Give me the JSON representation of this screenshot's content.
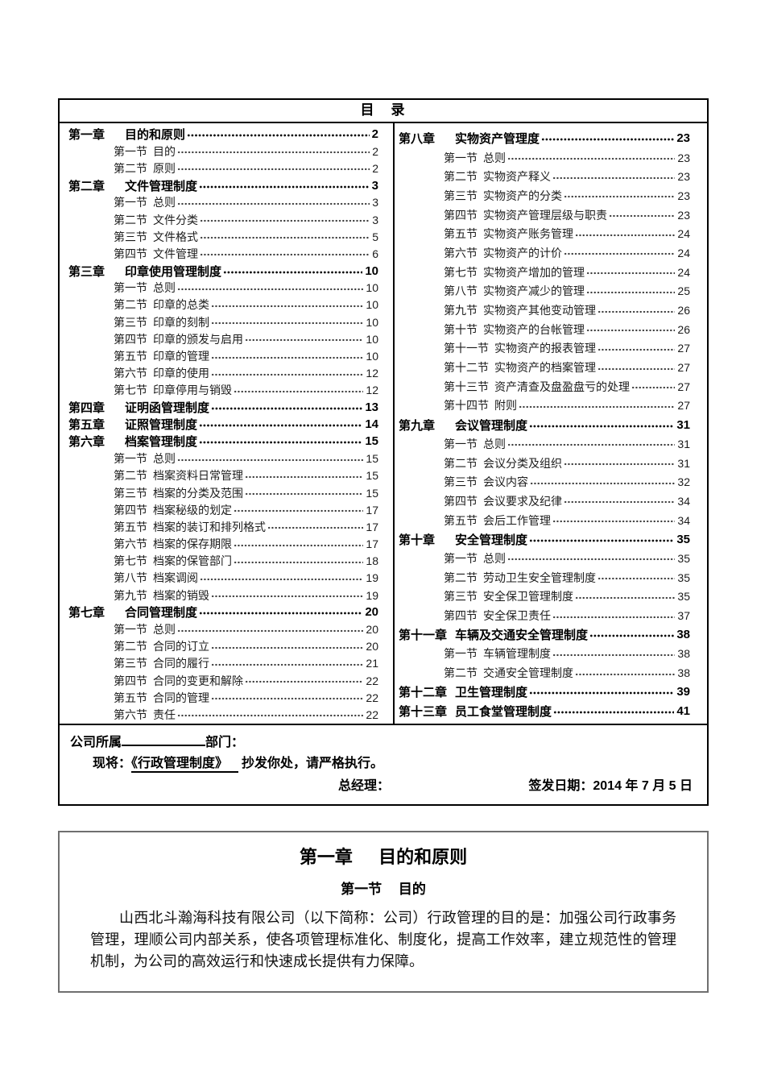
{
  "document": {
    "toc": {
      "title": "目　录",
      "left_column": [
        {
          "type": "chapter",
          "label": "第一章",
          "title": "目的和原则",
          "page": "2"
        },
        {
          "type": "section",
          "label": "第一节",
          "title": "目的",
          "page": "2"
        },
        {
          "type": "section",
          "label": "第二节",
          "title": "原则",
          "page": "2"
        },
        {
          "type": "chapter",
          "label": "第二章",
          "title": "文件管理制度",
          "page": "3"
        },
        {
          "type": "section",
          "label": "第一节",
          "title": "总则",
          "page": "3"
        },
        {
          "type": "section",
          "label": "第二节",
          "title": "文件分类",
          "page": "3"
        },
        {
          "type": "section",
          "label": "第三节",
          "title": "文件格式",
          "page": "5"
        },
        {
          "type": "section",
          "label": "第四节",
          "title": "文件管理",
          "page": "6"
        },
        {
          "type": "chapter",
          "label": "第三章",
          "title": "印章使用管理制度",
          "page": "10"
        },
        {
          "type": "section",
          "label": "第一节",
          "title": "总则",
          "page": "10"
        },
        {
          "type": "section",
          "label": "第二节",
          "title": "印章的总类",
          "page": "10"
        },
        {
          "type": "section",
          "label": "第三节",
          "title": "印章的刻制",
          "page": "10"
        },
        {
          "type": "section",
          "label": "第四节",
          "title": "印章的颁发与启用",
          "page": "10"
        },
        {
          "type": "section",
          "label": "第五节",
          "title": "印章的管理",
          "page": "10"
        },
        {
          "type": "section",
          "label": "第六节",
          "title": "印章的使用",
          "page": "12"
        },
        {
          "type": "section",
          "label": "第七节",
          "title": "印章停用与销毁",
          "page": "12"
        },
        {
          "type": "chapter",
          "label": "第四章",
          "title": "证明函管理制度",
          "page": "13"
        },
        {
          "type": "chapter",
          "label": "第五章",
          "title": "证照管理制度",
          "page": "14"
        },
        {
          "type": "chapter",
          "label": "第六章",
          "title": "档案管理制度",
          "page": "15"
        },
        {
          "type": "section",
          "label": "第一节",
          "title": "总则",
          "page": "15"
        },
        {
          "type": "section",
          "label": "第二节",
          "title": "档案资料日常管理",
          "page": "15"
        },
        {
          "type": "section",
          "label": "第三节",
          "title": "档案的分类及范围",
          "page": "15"
        },
        {
          "type": "section",
          "label": "第四节",
          "title": "档案秘级的划定",
          "page": "17"
        },
        {
          "type": "section",
          "label": "第五节",
          "title": "档案的装订和排列格式",
          "page": "17"
        },
        {
          "type": "section",
          "label": "第六节",
          "title": "档案的保存期限",
          "page": "17"
        },
        {
          "type": "section",
          "label": "第七节",
          "title": "档案的保管部门",
          "page": "18"
        },
        {
          "type": "section",
          "label": "第八节",
          "title": "档案调阅",
          "page": "19"
        },
        {
          "type": "section",
          "label": "第九节",
          "title": "档案的销毁",
          "page": "19"
        },
        {
          "type": "chapter",
          "label": "第七章",
          "title": "合同管理制度",
          "page": "20"
        },
        {
          "type": "section",
          "label": "第一节",
          "title": "总则",
          "page": "20"
        },
        {
          "type": "section",
          "label": "第二节",
          "title": "合同的订立",
          "page": "20"
        },
        {
          "type": "section",
          "label": "第三节",
          "title": "合同的履行",
          "page": "21"
        },
        {
          "type": "section",
          "label": "第四节",
          "title": "合同的变更和解除",
          "page": "22"
        },
        {
          "type": "section",
          "label": "第五节",
          "title": "合同的管理",
          "page": "22"
        },
        {
          "type": "section",
          "label": "第六节",
          "title": "责任",
          "page": "22"
        }
      ],
      "right_column": [
        {
          "type": "chapter",
          "label": "第八章",
          "title": "实物资产管理度",
          "page": "23"
        },
        {
          "type": "section",
          "label": "第一节",
          "title": "总则",
          "page": "23"
        },
        {
          "type": "section",
          "label": "第二节",
          "title": "实物资产释义",
          "page": "23"
        },
        {
          "type": "section",
          "label": "第三节",
          "title": "实物资产的分类",
          "page": "23"
        },
        {
          "type": "section",
          "label": "第四节",
          "title": "实物资产管理层级与职责",
          "page": "23"
        },
        {
          "type": "section",
          "label": "第五节",
          "title": "实物资产账务管理",
          "page": "24"
        },
        {
          "type": "section",
          "label": "第六节",
          "title": "实物资产的计价",
          "page": "24"
        },
        {
          "type": "section",
          "label": "第七节",
          "title": "实物资产增加的管理",
          "page": "24"
        },
        {
          "type": "section",
          "label": "第八节",
          "title": "实物资产减少的管理",
          "page": "25"
        },
        {
          "type": "section",
          "label": "第九节",
          "title": "实物资产其他变动管理",
          "page": "26"
        },
        {
          "type": "section",
          "label": "第十节",
          "title": "实物资产的台帐管理",
          "page": "26"
        },
        {
          "type": "section",
          "label": "第十一节",
          "title": "实物资产的报表管理",
          "page": "27"
        },
        {
          "type": "section",
          "label": "第十二节",
          "title": "实物资产的档案管理",
          "page": "27"
        },
        {
          "type": "section",
          "label": "第十三节",
          "title": "资产清查及盘盈盘亏的处理",
          "page": "27"
        },
        {
          "type": "section",
          "label": "第十四节",
          "title": "附则",
          "page": "27"
        },
        {
          "type": "chapter",
          "label": "第九章",
          "title": "会议管理制度",
          "page": "31"
        },
        {
          "type": "section",
          "label": "第一节",
          "title": "总则",
          "page": "31"
        },
        {
          "type": "section",
          "label": "第二节",
          "title": "会议分类及组织",
          "page": "31"
        },
        {
          "type": "section",
          "label": "第三节",
          "title": "会议内容",
          "page": "32"
        },
        {
          "type": "section",
          "label": "第四节",
          "title": "会议要求及纪律",
          "page": "34"
        },
        {
          "type": "section",
          "label": "第五节",
          "title": "会后工作管理",
          "page": "34"
        },
        {
          "type": "chapter",
          "label": "第十章",
          "title": "安全管理制度",
          "page": "35"
        },
        {
          "type": "section",
          "label": "第一节",
          "title": "总则",
          "page": "35"
        },
        {
          "type": "section",
          "label": "第二节",
          "title": "劳动卫生安全管理制度",
          "page": "35"
        },
        {
          "type": "section",
          "label": "第三节",
          "title": "安全保卫管理制度",
          "page": "35"
        },
        {
          "type": "section",
          "label": "第四节",
          "title": "安全保卫责任",
          "page": "37"
        },
        {
          "type": "chapter",
          "label": "第十一章",
          "title": "车辆及交通安全管理制度",
          "page": "38"
        },
        {
          "type": "section",
          "label": "第一节",
          "title": "车辆管理制度",
          "page": "38"
        },
        {
          "type": "section",
          "label": "第二节",
          "title": "交通安全管理制度",
          "page": "38"
        },
        {
          "type": "chapter",
          "label": "第十二章",
          "title": "卫生管理制度",
          "page": "39"
        },
        {
          "type": "chapter",
          "label": "第十三章",
          "title": "员工食堂管理制度",
          "page": "41"
        }
      ]
    },
    "notice": {
      "belongs_prefix": "公司所属",
      "belongs_suffix": "部门：",
      "copy_prefix": "现将：",
      "copy_document": "《行政管理制度》",
      "copy_suffix": "抄发你处，请严格执行。",
      "gm_label": "总经理：",
      "sign_date_label": "签发日期：2014 年 7 月 5 日"
    },
    "chapter_one": {
      "chapter_label": "第一章",
      "chapter_title": "目的和原则",
      "section_label": "第一节",
      "section_title": "目的",
      "paragraph": "山西北斗瀚海科技有限公司（以下简称：公司）行政管理的目的是：加强公司行政事务管理，理顺公司内部关系，使各项管理标准化、制度化，提高工作效率，建立规范性的管理机制，为公司的高效运行和快速成长提供有力保障。"
    }
  }
}
